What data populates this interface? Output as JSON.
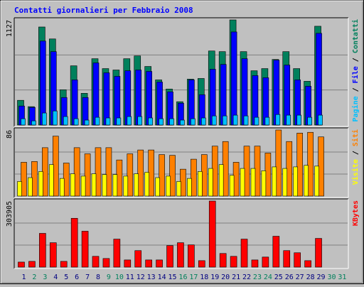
{
  "title": "Contatti giornalieri per Febbraio 2008",
  "chart_data": [
    {
      "type": "bar",
      "ylim": [
        0,
        1127
      ],
      "yticks": [
        1127
      ],
      "separator": "/",
      "series": [
        {
          "name": "Contatti",
          "color": "#00805c",
          "values": [
            265,
            197,
            1051,
            923,
            378,
            635,
            340,
            711,
            605,
            590,
            711,
            741,
            628,
            484,
            386,
            250,
            492,
            499,
            794,
            787,
            1127,
            787,
            582,
            605,
            703,
            787,
            605,
            469,
            1059,
            0,
            0
          ]
        },
        {
          "name": "File",
          "color": "#0000ff",
          "values": [
            204,
            189,
            900,
            787,
            295,
            484,
            295,
            666,
            560,
            522,
            582,
            590,
            575,
            461,
            356,
            234,
            484,
            325,
            598,
            650,
            998,
            711,
            530,
            507,
            696,
            643,
            484,
            416,
            983,
            0,
            0
          ]
        },
        {
          "name": "Pagine",
          "color": "#00c0ff",
          "values": [
            68,
            45,
            129,
            151,
            91,
            68,
            53,
            83,
            76,
            76,
            91,
            91,
            76,
            68,
            68,
            53,
            68,
            76,
            98,
            98,
            106,
            98,
            83,
            83,
            113,
            106,
            106,
            83,
            106,
            0,
            0
          ]
        }
      ]
    },
    {
      "type": "bar",
      "ylim": [
        0,
        86
      ],
      "yticks": [
        86
      ],
      "separator": "/",
      "series": [
        {
          "name": "Siti",
          "color": "#ff8000",
          "values": [
            44,
            45,
            63,
            78,
            43,
            63,
            55,
            63,
            63,
            47,
            55,
            60,
            60,
            54,
            53,
            35,
            48,
            54,
            65,
            71,
            44,
            65,
            65,
            56,
            86,
            71,
            82,
            83,
            77,
            0,
            0
          ]
        },
        {
          "name": "Visite",
          "color": "#ffff00",
          "values": [
            19,
            24,
            32,
            41,
            23,
            29,
            26,
            29,
            28,
            28,
            26,
            29,
            31,
            24,
            26,
            19,
            23,
            32,
            36,
            41,
            27,
            36,
            36,
            33,
            38,
            36,
            38,
            40,
            39,
            0,
            0
          ]
        }
      ]
    },
    {
      "type": "bar",
      "ylim": [
        0,
        303905
      ],
      "yticks": [
        303905
      ],
      "categories": [
        "1",
        "2",
        "3",
        "4",
        "5",
        "6",
        "7",
        "8",
        "9",
        "10",
        "11",
        "12",
        "13",
        "14",
        "15",
        "16",
        "17",
        "18",
        "19",
        "20",
        "21",
        "22",
        "23",
        "24",
        "25",
        "26",
        "27",
        "28",
        "29",
        "30",
        "31"
      ],
      "label_colors": [
        "#000080",
        "#00805c",
        "#00805c",
        "#000080",
        "#000080",
        "#000080",
        "#000080",
        "#000080",
        "#00805c",
        "#00805c",
        "#000080",
        "#000080",
        "#000080",
        "#000080",
        "#000080",
        "#00805c",
        "#00805c",
        "#000080",
        "#000080",
        "#000080",
        "#000080",
        "#000080",
        "#00805c",
        "#00805c",
        "#000080",
        "#000080",
        "#000080",
        "#000080",
        "#000080",
        "#00805c",
        "#00805c"
      ],
      "series": [
        {
          "name": "KBytes",
          "color": "#ff0000",
          "values": [
            23121,
            26424,
            155241,
            112302,
            26424,
            224604,
            165150,
            49545,
            39636,
            128817,
            33030,
            75969,
            33030,
            33030,
            99090,
            112302,
            102393,
            29727,
            303905,
            62757,
            49545,
            128817,
            33030,
            46242,
            142029,
            75969,
            66060,
            29727,
            132120,
            0,
            0
          ]
        }
      ]
    }
  ]
}
